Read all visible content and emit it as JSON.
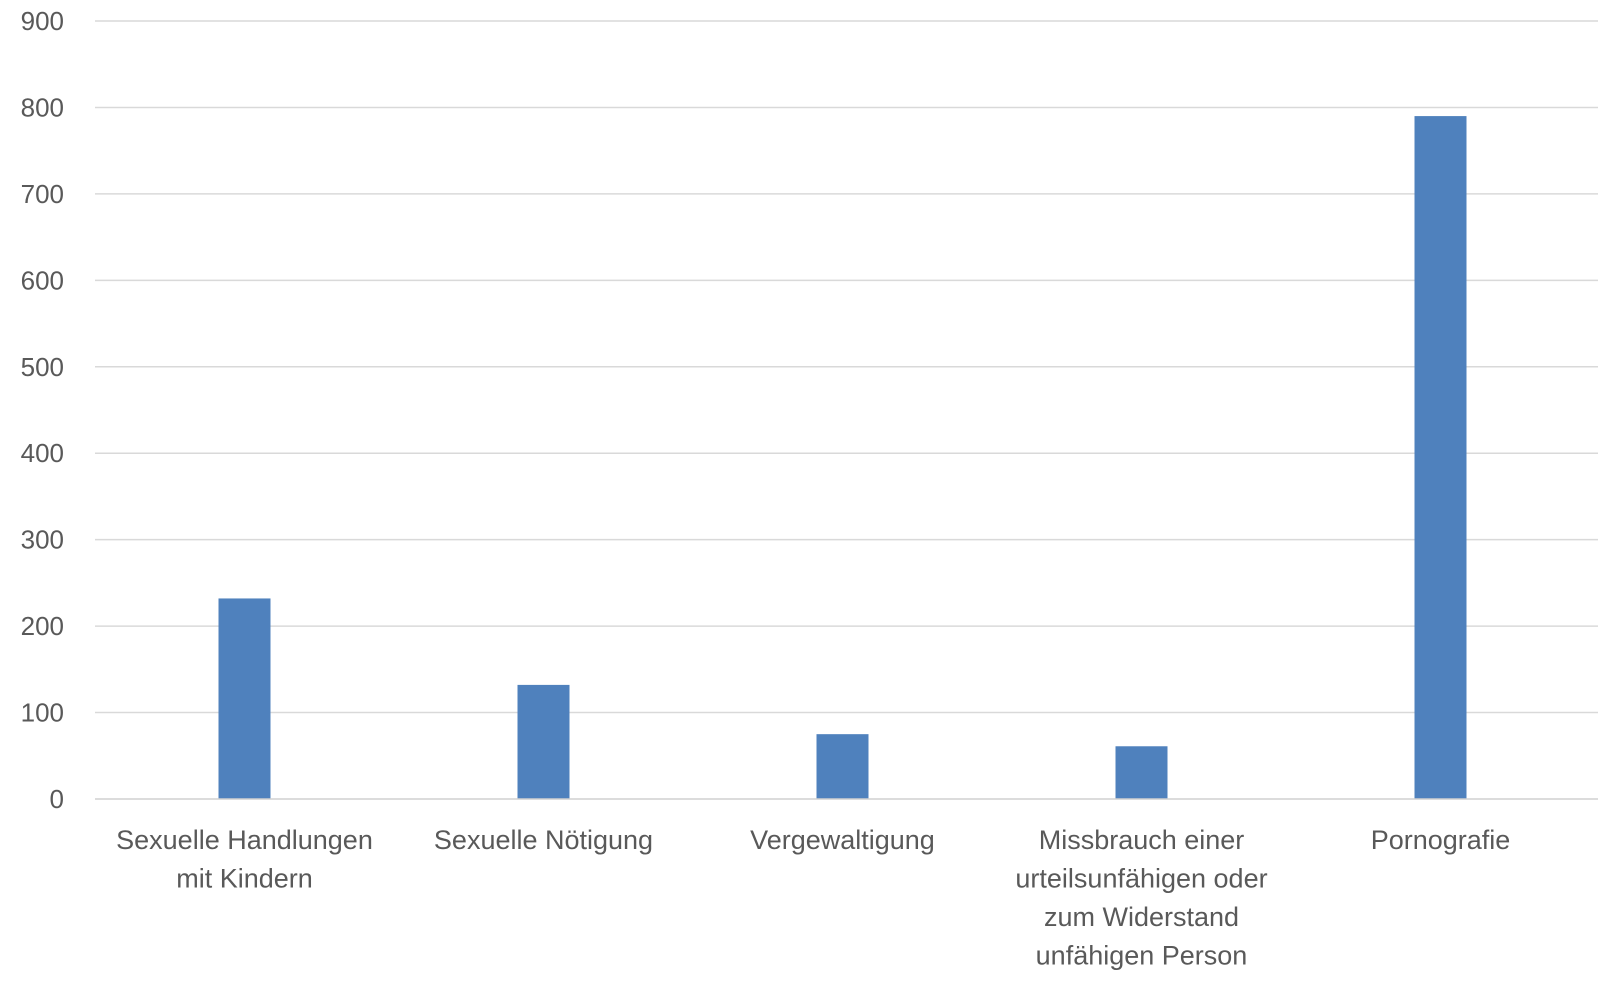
{
  "chart_data": {
    "type": "bar",
    "title": "",
    "xlabel": "",
    "ylabel": "",
    "categories": [
      [
        "Sexuelle Handlungen",
        "mit Kindern"
      ],
      [
        "Sexuelle Nötigung"
      ],
      [
        "Vergewaltigung"
      ],
      [
        "Missbrauch einer",
        "urteilsunfähigen oder",
        "zum Widerstand",
        "unfähigen Person"
      ],
      [
        "Pornografie"
      ]
    ],
    "values": [
      232,
      132,
      75,
      61,
      790
    ],
    "ylim": [
      0,
      900
    ],
    "yticks": [
      0,
      100,
      200,
      300,
      400,
      500,
      600,
      700,
      800,
      900
    ],
    "grid": true,
    "legend": "none",
    "bar_color": "#4f81bd",
    "grid_color": "#d9d9d9",
    "text_color": "#595959"
  }
}
